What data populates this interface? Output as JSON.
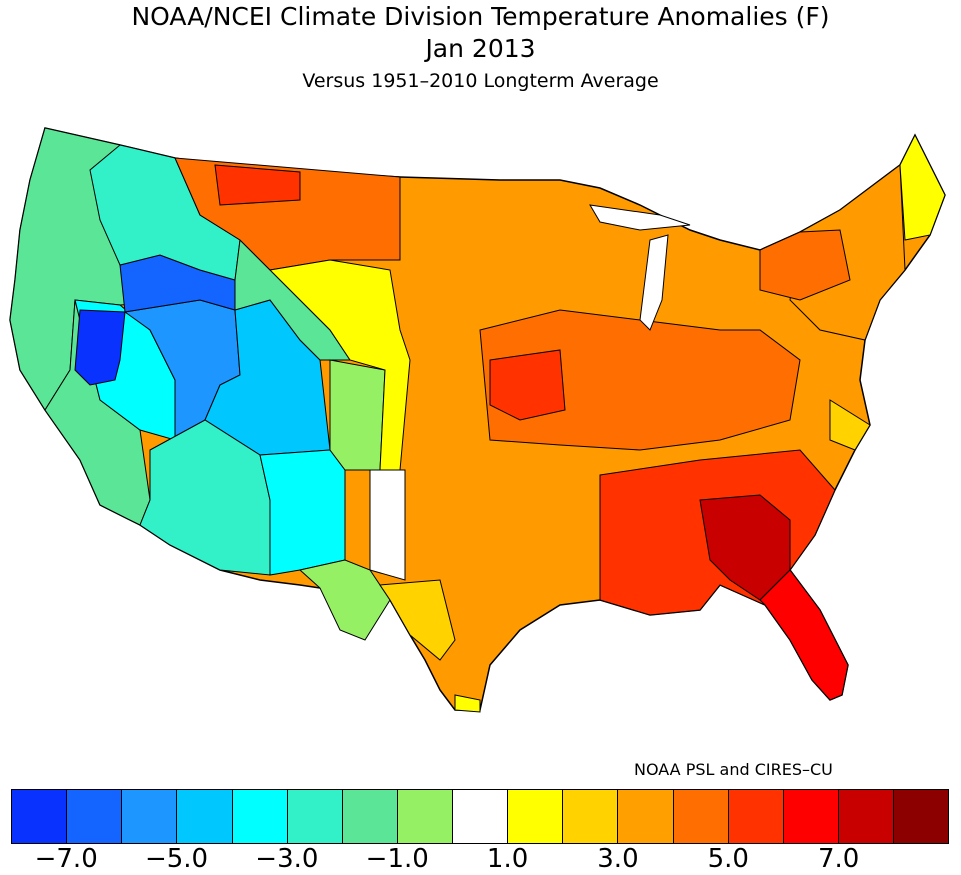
{
  "title": {
    "line1": "NOAA/NCEI Climate Division Temperature Anomalies (F)",
    "line2": "Jan 2013",
    "line3": "Versus 1951–2010 Longterm Average"
  },
  "credit": "NOAA PSL and CIRES–CU",
  "legend": {
    "colors": [
      "#0a32ff",
      "#1464ff",
      "#1e96ff",
      "#00c8ff",
      "#00ffff",
      "#32f0c8",
      "#5ae696",
      "#96f064",
      "#ffffff",
      "#ffff00",
      "#ffd200",
      "#ffa000",
      "#ff6e00",
      "#ff3200",
      "#ff0000",
      "#c80000",
      "#8c0000"
    ],
    "labels": [
      "−7.0",
      "−5.0",
      "−3.0",
      "−1.0",
      "1.0",
      "3.0",
      "5.0",
      "7.0"
    ]
  },
  "map": {
    "regions": [
      {
        "name": "pacific-northwest",
        "anomaly": -1.5
      },
      {
        "name": "california",
        "anomaly": -1.5
      },
      {
        "name": "great-basin",
        "anomaly": -6.5
      },
      {
        "name": "utah",
        "anomaly": -5.5
      },
      {
        "name": "colorado",
        "anomaly": -4.5
      },
      {
        "name": "arizona",
        "anomaly": -3.5
      },
      {
        "name": "new-mexico",
        "anomaly": -2.5
      },
      {
        "name": "northern-plains",
        "anomaly": 4.0
      },
      {
        "name": "midwest",
        "anomaly": 4.0
      },
      {
        "name": "texas",
        "anomaly": 3.0
      },
      {
        "name": "southeast",
        "anomaly": 6.5
      },
      {
        "name": "georgia",
        "anomaly": 7.5
      },
      {
        "name": "florida",
        "anomaly": 6.0
      },
      {
        "name": "northeast",
        "anomaly": 3.5
      },
      {
        "name": "maine",
        "anomaly": 1.5
      }
    ]
  }
}
